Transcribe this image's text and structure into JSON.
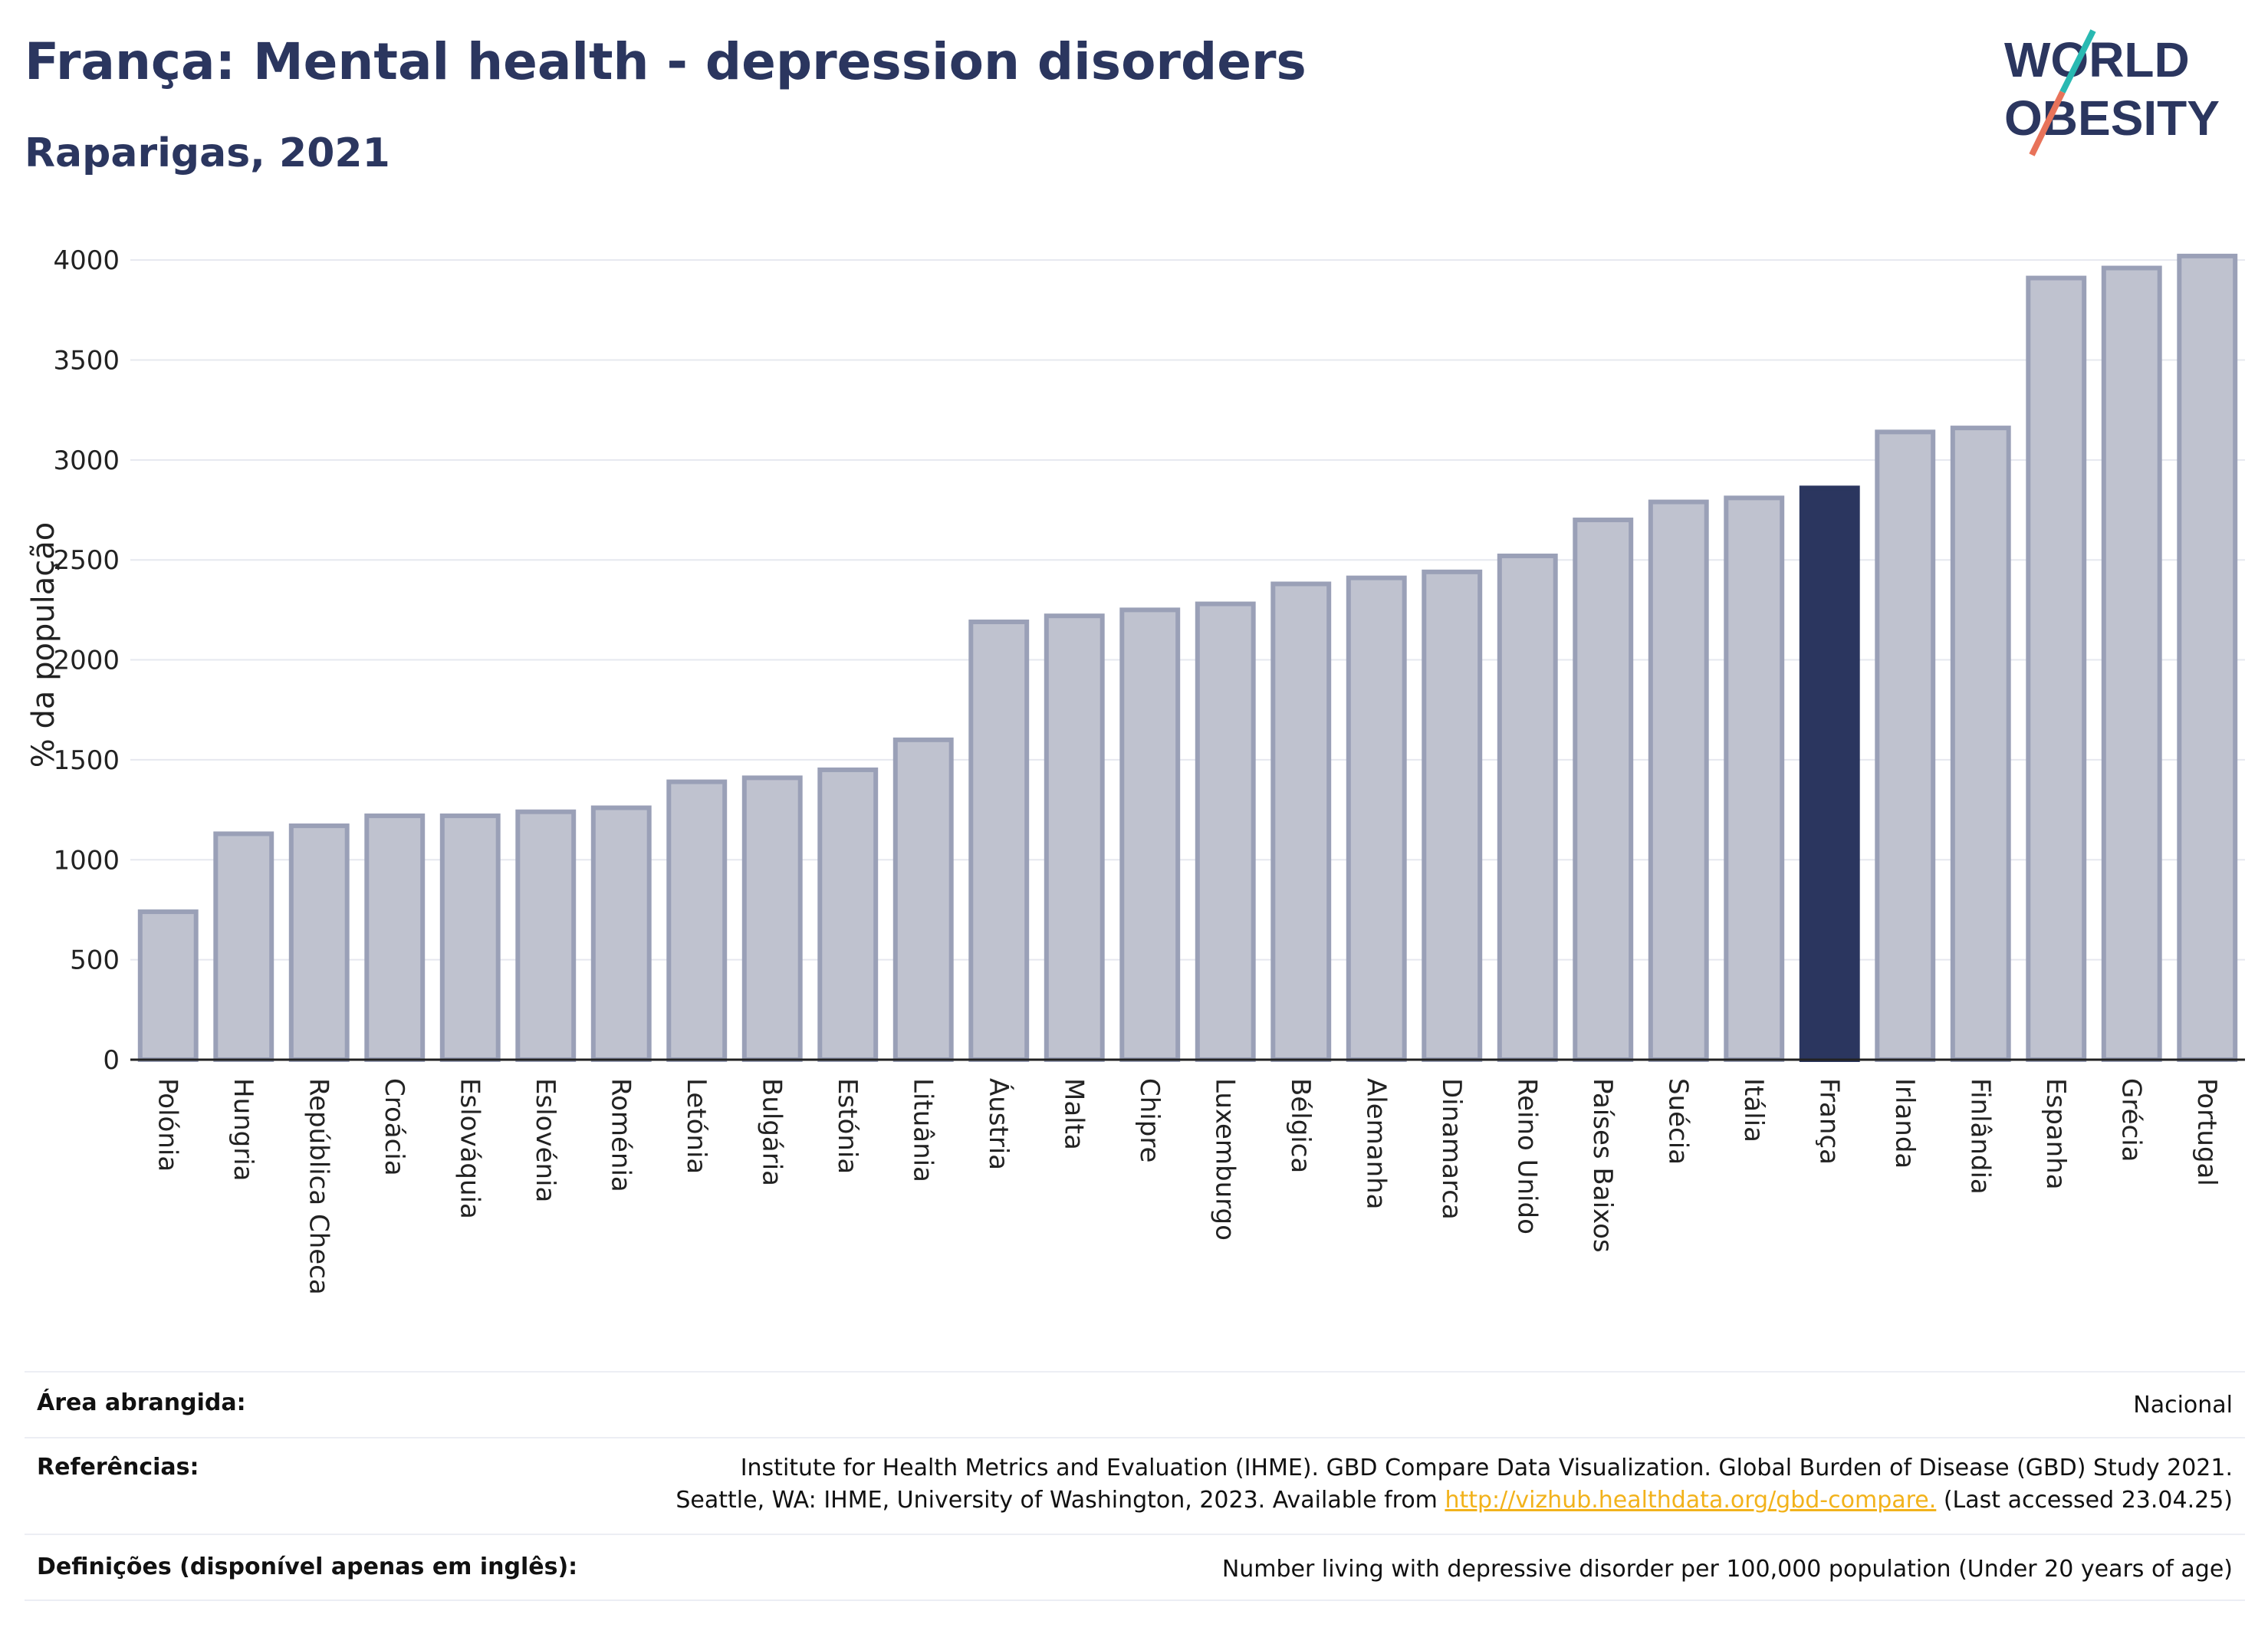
{
  "header": {
    "title": "França: Mental health - depression disorders",
    "subtitle": "Raparigas, 2021"
  },
  "logo": {
    "line1": "WORLD",
    "line2": "OBESITY"
  },
  "chart_data": {
    "type": "bar",
    "title": "França: Mental health - depression disorders",
    "subtitle": "Raparigas, 2021",
    "ylabel": "% da população",
    "xlabel": "",
    "ylim": [
      0,
      4150
    ],
    "yticks": [
      0,
      500,
      1000,
      1500,
      2000,
      2500,
      3000,
      3500,
      4000
    ],
    "grid": true,
    "highlight": "França",
    "colors": {
      "bar": "#bfc2cf",
      "bar_border": "#9aa0b7",
      "highlight": "#2b365f"
    },
    "categories": [
      "Polónia",
      "Hungria",
      "República Checa",
      "Croácia",
      "Eslováquia",
      "Eslovénia",
      "Roménia",
      "Letónia",
      "Bulgária",
      "Estónia",
      "Lituânia",
      "Áustria",
      "Malta",
      "Chipre",
      "Luxemburgo",
      "Bélgica",
      "Alemanha",
      "Dinamarca",
      "Reino Unido",
      "Países Baixos",
      "Suécia",
      "Itália",
      "França",
      "Irlanda",
      "Finlândia",
      "Espanha",
      "Grécia",
      "Portugal"
    ],
    "values": [
      740,
      1130,
      1170,
      1220,
      1220,
      1240,
      1260,
      1390,
      1410,
      1450,
      1600,
      2190,
      2220,
      2250,
      2280,
      2380,
      2410,
      2440,
      2520,
      2700,
      2790,
      2810,
      2860,
      3140,
      3160,
      3910,
      3960,
      4020
    ]
  },
  "footer": {
    "area_label": "Área abrangida:",
    "area_value": "Nacional",
    "ref_label": "Referências:",
    "ref_line1": "Institute for Health Metrics and Evaluation (IHME). GBD Compare Data Visualization. Global Burden of Disease (GBD) Study 2021.",
    "ref_line2_pre": "Seattle, WA: IHME, University of Washington, 2023. Available from ",
    "ref_link": "http://vizhub.healthdata.org/gbd-compare.",
    "ref_line2_post": " (Last accessed 23.04.25)",
    "def_label": "Definições (disponível apenas em inglês):",
    "def_value": "Number living with depressive disorder per 100,000 population (Under 20 years of age)"
  }
}
